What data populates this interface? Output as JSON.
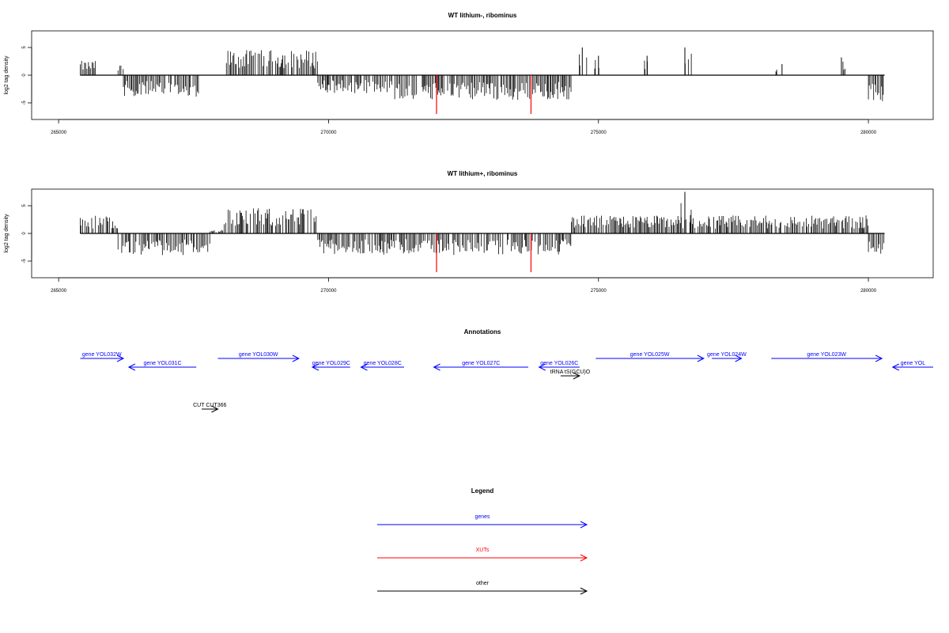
{
  "colors": {
    "genes": "#0000ff",
    "XUTs": "#ff0000",
    "other": "#000000"
  },
  "chart_data": [
    {
      "type": "bar",
      "title": "WT lithium-, ribominus",
      "ylabel": "log2 tag density",
      "xlim": [
        264500,
        281200
      ],
      "ylim": [
        -8,
        8
      ],
      "x_ticks": [
        265000,
        270000,
        275000,
        280000
      ],
      "y_ticks": [
        5,
        0,
        -5
      ],
      "grid": false,
      "density_profile": [
        {
          "x0": 265400,
          "x1": 265700,
          "avg": 2
        },
        {
          "x0": 265700,
          "x1": 266100,
          "avg": 0
        },
        {
          "x0": 266100,
          "x1": 266200,
          "avg": 1.5
        },
        {
          "x0": 266200,
          "x1": 267600,
          "avg": -3
        },
        {
          "x0": 267600,
          "x1": 268050,
          "avg": 0
        },
        {
          "x0": 268050,
          "x1": 269800,
          "avg": 3.5
        },
        {
          "x0": 269800,
          "x1": 271200,
          "avg": -2.5
        },
        {
          "x0": 271200,
          "x1": 274500,
          "avg": -3.5
        },
        {
          "x0": 274500,
          "x1": 280000,
          "avg": 0
        },
        {
          "x0": 280000,
          "x1": 280300,
          "avg": -4
        }
      ],
      "isolated_peaks": [
        {
          "x": 274700,
          "value": 5
        },
        {
          "x": 275000,
          "value": 3.5
        },
        {
          "x": 275900,
          "value": 3.5
        },
        {
          "x": 276600,
          "value": 5
        },
        {
          "x": 278400,
          "value": 2
        },
        {
          "x": 279500,
          "value": 3.2
        }
      ],
      "highlighted_bars": [
        {
          "x": 272000,
          "value": -7,
          "type": "XUTs"
        },
        {
          "x": 273750,
          "value": -7,
          "type": "XUTs"
        }
      ]
    },
    {
      "type": "bar",
      "title": "WT lithium+, ribominus",
      "ylabel": "log2 tag density",
      "xlim": [
        264500,
        281200
      ],
      "ylim": [
        -8,
        8
      ],
      "x_ticks": [
        265000,
        270000,
        275000,
        280000
      ],
      "y_ticks": [
        5,
        0,
        -5
      ],
      "grid": false,
      "density_profile": [
        {
          "x0": 265400,
          "x1": 266100,
          "avg": 2.5
        },
        {
          "x0": 266100,
          "x1": 267800,
          "avg": -3
        },
        {
          "x0": 267800,
          "x1": 268050,
          "avg": 0.5
        },
        {
          "x0": 268050,
          "x1": 269800,
          "avg": 3.5
        },
        {
          "x0": 269800,
          "x1": 274500,
          "avg": -3
        },
        {
          "x0": 274500,
          "x1": 280000,
          "avg": 2.5
        },
        {
          "x0": 280000,
          "x1": 280300,
          "avg": -3
        }
      ],
      "isolated_peaks": [
        {
          "x": 276600,
          "value": 7.5
        }
      ],
      "highlighted_bars": [
        {
          "x": 272000,
          "value": -7,
          "type": "XUTs"
        },
        {
          "x": 273750,
          "value": -7,
          "type": "XUTs"
        }
      ]
    }
  ],
  "annotations": {
    "title": "Annotations",
    "features": [
      {
        "label": "gene YOL032W",
        "x0": 265400,
        "x1": 266200,
        "strand": "+",
        "row": 1,
        "type": "genes"
      },
      {
        "label": "gene YOL031C",
        "x0": 266300,
        "x1": 267550,
        "strand": "-",
        "row": 2,
        "type": "genes"
      },
      {
        "label": "gene YOL030W",
        "x0": 267950,
        "x1": 269450,
        "strand": "+",
        "row": 1,
        "type": "genes"
      },
      {
        "label": "gene YOL029C",
        "x0": 269700,
        "x1": 270400,
        "strand": "-",
        "row": 2,
        "type": "genes"
      },
      {
        "label": "gene YOL028C",
        "x0": 270600,
        "x1": 271400,
        "strand": "-",
        "row": 2,
        "type": "genes"
      },
      {
        "label": "gene YOL027C",
        "x0": 271950,
        "x1": 273700,
        "strand": "-",
        "row": 2,
        "type": "genes"
      },
      {
        "label": "gene YOL026C",
        "x0": 273900,
        "x1": 274650,
        "strand": "-",
        "row": 2,
        "type": "genes"
      },
      {
        "label": "tRNA tS(GCU)O",
        "x0": 274300,
        "x1": 274650,
        "strand": "+",
        "row": 3,
        "type": "other"
      },
      {
        "label": "gene YOL025W",
        "x0": 274950,
        "x1": 276950,
        "strand": "+",
        "row": 1,
        "type": "genes"
      },
      {
        "label": "gene YOL024W",
        "x0": 277100,
        "x1": 277650,
        "strand": "+",
        "row": 1,
        "type": "genes"
      },
      {
        "label": "gene YOL023W",
        "x0": 278200,
        "x1": 280250,
        "strand": "+",
        "row": 1,
        "type": "genes"
      },
      {
        "label": "gene YOL",
        "x0": 280450,
        "x1": 281200,
        "strand": "-",
        "row": 2,
        "type": "genes"
      },
      {
        "label": "CUT CUT366",
        "x0": 267650,
        "x1": 267950,
        "strand": "+",
        "row": 4,
        "type": "other"
      }
    ]
  },
  "legend": {
    "title": "Legend",
    "items": [
      {
        "label": "genes",
        "color_key": "genes"
      },
      {
        "label": "XUTs",
        "color_key": "XUTs"
      },
      {
        "label": "other",
        "color_key": "other"
      }
    ]
  }
}
